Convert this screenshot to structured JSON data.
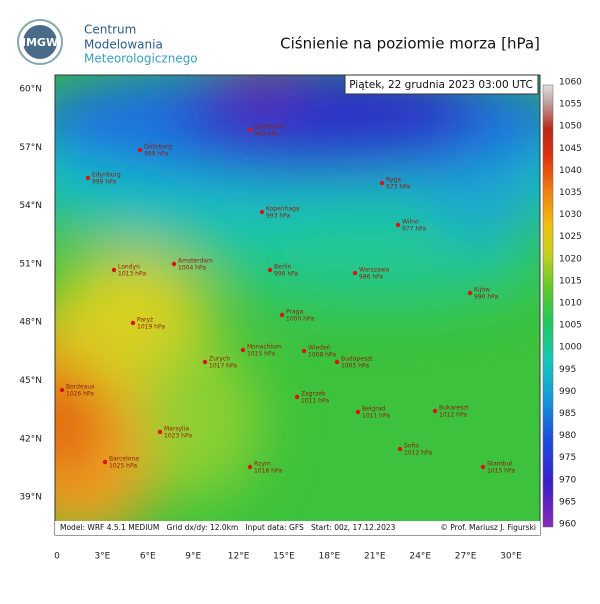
{
  "header": {
    "logo": "IMGW",
    "institution": [
      "Centrum",
      "Modelowania",
      "Meteorologicznego"
    ],
    "title": "Ciśnienie na poziomie morza [hPa]",
    "timestamp": "Piątek, 22 grudnia 2023 03:00 UTC"
  },
  "colorbar": {
    "ticks": [
      1060,
      1055,
      1050,
      1045,
      1040,
      1035,
      1030,
      1025,
      1020,
      1015,
      1010,
      1005,
      1000,
      995,
      990,
      985,
      980,
      975,
      970,
      965,
      960
    ]
  },
  "lat_labels": [
    "60°N",
    "57°N",
    "54°N",
    "51°N",
    "48°N",
    "45°N",
    "42°N",
    "39°N"
  ],
  "lon_labels": [
    "0",
    "3°E",
    "6°E",
    "9°E",
    "12°E",
    "15°E",
    "18°E",
    "21°E",
    "24°E",
    "27°E",
    "30°E"
  ],
  "cities": [
    {
      "name": "Edynburg",
      "label": "999 hPa"
    },
    {
      "name": "Göteborg",
      "label": "989 hPa"
    },
    {
      "name": "Sztokholm",
      "label": "983 hPa"
    },
    {
      "name": "Ryga",
      "label": "973 hPa"
    },
    {
      "name": "Kopenhaga",
      "label": "993 hPa"
    },
    {
      "name": "Wilno",
      "label": "977 hPa"
    },
    {
      "name": "Amsterdam",
      "label": "1004 hPa"
    },
    {
      "name": "Londyn",
      "label": "1013 hPa"
    },
    {
      "name": "Berlin",
      "label": "996 hPa"
    },
    {
      "name": "Warszawa",
      "label": "986 hPa"
    },
    {
      "name": "Kijów",
      "label": "990 hPa"
    },
    {
      "name": "Paryż",
      "label": "1019 hPa"
    },
    {
      "name": "Praga",
      "label": "1000 hPa"
    },
    {
      "name": "Monachium",
      "label": "1015 hPa"
    },
    {
      "name": "Wiedeń",
      "label": "1008 hPa"
    },
    {
      "name": "Zurych",
      "label": "1017 hPa"
    },
    {
      "name": "Budapeszt",
      "label": "1005 hPa"
    },
    {
      "name": "Bordeaux",
      "label": "1026 hPa"
    },
    {
      "name": "Zagrzeb",
      "label": "1011 hPa"
    },
    {
      "name": "Belgrad",
      "label": "1011 hPa"
    },
    {
      "name": "Bukareszt",
      "label": "1012 hPa"
    },
    {
      "name": "Marsylia",
      "label": "1023 hPa"
    },
    {
      "name": "Barcelona",
      "label": "1025 hPa"
    },
    {
      "name": "Rzym",
      "label": "1018 hPa"
    },
    {
      "name": "Sofia",
      "label": "1012 hPa"
    },
    {
      "name": "Stambuł",
      "label": "1015 hPa"
    }
  ],
  "footer": {
    "model": "Model: WRF 4.5.1 MEDIUM   Grid dx/dy: 12.0km   Input data: GFS   Start: 00z, 17.12.2023",
    "credit": "© Prof. Mariusz J. Figurski"
  }
}
